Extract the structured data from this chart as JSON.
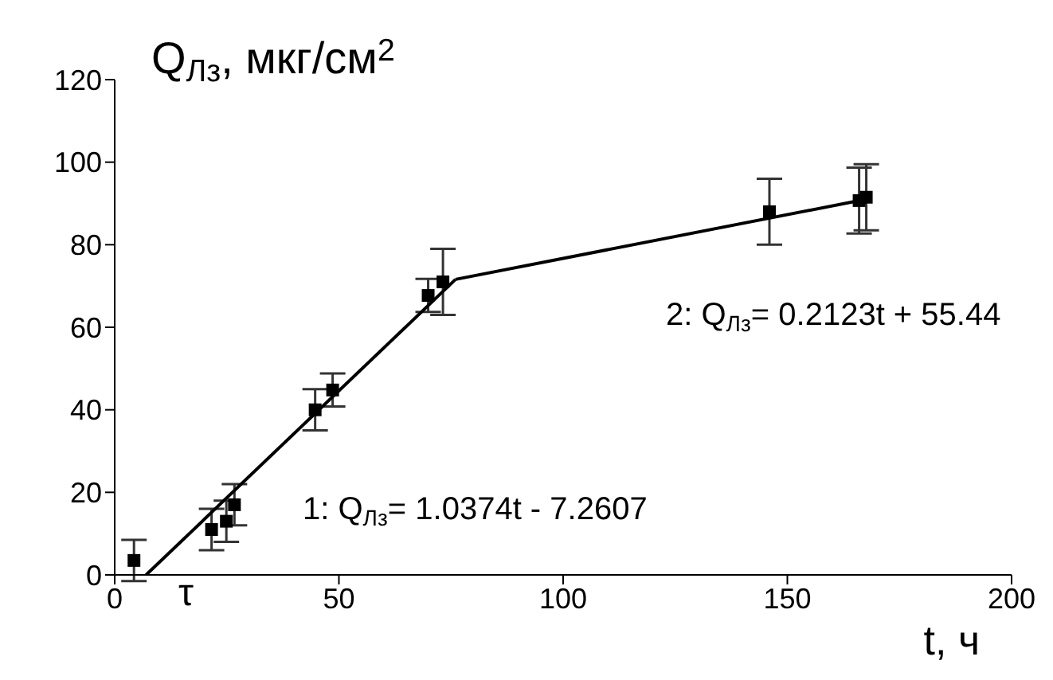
{
  "chart_data": {
    "type": "scatter",
    "xlabel": "t, ч",
    "ylabel": "Q$_{Лз}$, мкг/см$^{2}$",
    "xlim": [
      0,
      200
    ],
    "xticks": [
      0,
      50,
      100,
      150,
      200
    ],
    "ylim": [
      0,
      120
    ],
    "yticks": [
      0,
      20,
      40,
      60,
      80,
      100,
      120
    ],
    "marker": "square",
    "series": [
      {
        "color": "#000000",
        "x": [
          4.3,
          21.6,
          24.9,
          26.7,
          44.7,
          48.6,
          69.9,
          73.2,
          146,
          166,
          167.6
        ],
        "values": [
          3.5,
          11,
          13,
          17,
          40,
          44.8,
          67.7,
          71,
          88,
          90.7,
          91.5
        ],
        "errors": [
          5,
          5,
          5,
          5,
          5,
          4,
          4,
          8,
          8,
          8,
          8
        ]
      },
      {
        "type": "line",
        "color": "#000000",
        "marker": "none",
        "x": [
          7,
          76
        ],
        "values": [
          0,
          71.6
        ]
      },
      {
        "type": "line",
        "color": "#000000",
        "marker": "none",
        "x": [
          76,
          168
        ],
        "values": [
          71.6,
          91.1
        ]
      }
    ],
    "annotations": [
      "τ",
      "1: Q$_{Лз}$= 1.0374t - 7.2607",
      "2: Q$_{Лз}$= 0.2123t + 55.44"
    ]
  }
}
